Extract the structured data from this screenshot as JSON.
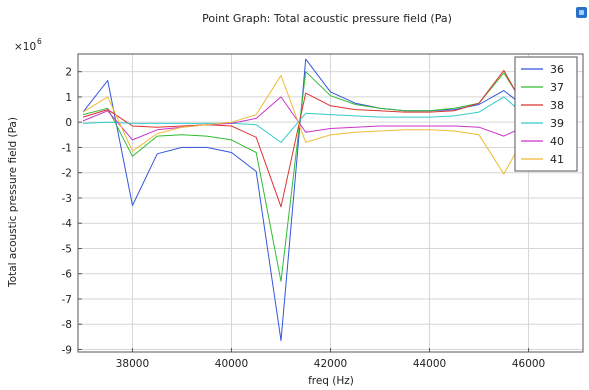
{
  "chart_data": {
    "type": "line",
    "title": "Point Graph: Total acoustic pressure field (Pa)",
    "xlabel": "freq (Hz)",
    "ylabel": "Total acoustic pressure field (Pa)",
    "scale_base": "×10",
    "scale_exp": "6",
    "xlim": [
      36900,
      47100
    ],
    "ylim": [
      -9.1,
      2.7
    ],
    "xticks": [
      38000,
      40000,
      42000,
      44000,
      46000
    ],
    "yticks": [
      2,
      1,
      0,
      -1,
      -2,
      -3,
      -4,
      -5,
      -6,
      -7,
      -8,
      -9
    ],
    "grid": true,
    "legend_position": "top-right",
    "x": [
      37000,
      37500,
      38000,
      38500,
      39000,
      39500,
      40000,
      40500,
      41000,
      41500,
      42000,
      42500,
      43000,
      43500,
      44000,
      44500,
      45000,
      45500,
      46000
    ],
    "series": [
      {
        "name": "36",
        "color": "#3355dd",
        "values": [
          0.4,
          1.65,
          -3.3,
          -1.25,
          -1.0,
          -1.0,
          -1.2,
          -1.95,
          -8.65,
          2.5,
          1.2,
          0.75,
          0.55,
          0.45,
          0.45,
          0.5,
          0.7,
          1.25,
          0.5
        ]
      },
      {
        "name": "37",
        "color": "#33bb33",
        "values": [
          0.3,
          0.55,
          -1.35,
          -0.55,
          -0.5,
          -0.55,
          -0.7,
          -1.2,
          -6.3,
          2.0,
          1.05,
          0.7,
          0.55,
          0.45,
          0.45,
          0.55,
          0.75,
          1.95,
          0.4
        ]
      },
      {
        "name": "38",
        "color": "#dd3333",
        "values": [
          0.2,
          0.5,
          -0.15,
          -0.2,
          -0.15,
          -0.1,
          -0.15,
          -0.6,
          -3.35,
          1.15,
          0.65,
          0.5,
          0.45,
          0.4,
          0.4,
          0.45,
          0.75,
          2.05,
          0.3
        ]
      },
      {
        "name": "39",
        "color": "#33cccc",
        "values": [
          -0.05,
          0.0,
          -0.05,
          -0.05,
          -0.05,
          -0.05,
          -0.05,
          -0.1,
          -0.8,
          0.35,
          0.3,
          0.25,
          0.2,
          0.2,
          0.2,
          0.25,
          0.4,
          1.0,
          0.15
        ]
      },
      {
        "name": "40",
        "color": "#cc33cc",
        "values": [
          0.05,
          0.45,
          -0.7,
          -0.3,
          -0.2,
          -0.1,
          -0.05,
          0.15,
          1.0,
          -0.4,
          -0.25,
          -0.2,
          -0.15,
          -0.15,
          -0.15,
          -0.15,
          -0.2,
          -0.55,
          -0.1
        ]
      },
      {
        "name": "41",
        "color": "#eebb33",
        "values": [
          0.4,
          1.0,
          -1.15,
          -0.45,
          -0.2,
          -0.1,
          0.0,
          0.3,
          1.85,
          -0.8,
          -0.5,
          -0.4,
          -0.35,
          -0.3,
          -0.3,
          -0.35,
          -0.5,
          -2.05,
          -0.3
        ]
      }
    ]
  }
}
